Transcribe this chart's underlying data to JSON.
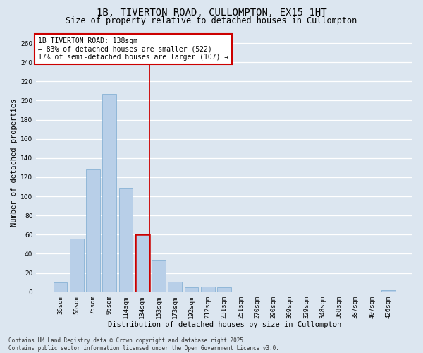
{
  "title_line1": "1B, TIVERTON ROAD, CULLOMPTON, EX15 1HT",
  "title_line2": "Size of property relative to detached houses in Cullompton",
  "xlabel": "Distribution of detached houses by size in Cullompton",
  "ylabel": "Number of detached properties",
  "categories": [
    "36sqm",
    "56sqm",
    "75sqm",
    "95sqm",
    "114sqm",
    "134sqm",
    "153sqm",
    "173sqm",
    "192sqm",
    "212sqm",
    "231sqm",
    "251sqm",
    "270sqm",
    "290sqm",
    "309sqm",
    "329sqm",
    "348sqm",
    "368sqm",
    "387sqm",
    "407sqm",
    "426sqm"
  ],
  "values": [
    10,
    56,
    128,
    207,
    109,
    60,
    34,
    11,
    5,
    6,
    5,
    0,
    0,
    0,
    0,
    0,
    0,
    0,
    0,
    0,
    2
  ],
  "bar_color": "#b8cfe8",
  "bar_edgecolor": "#7aaad0",
  "highlight_bar_index": 5,
  "highlight_bar_edgecolor": "#cc0000",
  "vline_color": "#cc0000",
  "annotation_text": "1B TIVERTON ROAD: 138sqm\n← 83% of detached houses are smaller (522)\n17% of semi-detached houses are larger (107) →",
  "annotation_box_facecolor": "#ffffff",
  "annotation_box_edgecolor": "#cc0000",
  "ylim": [
    0,
    270
  ],
  "yticks": [
    0,
    20,
    40,
    60,
    80,
    100,
    120,
    140,
    160,
    180,
    200,
    220,
    240,
    260
  ],
  "fig_facecolor": "#dce6f0",
  "plot_facecolor": "#dce6f0",
  "grid_color": "#ffffff",
  "footnote": "Contains HM Land Registry data © Crown copyright and database right 2025.\nContains public sector information licensed under the Open Government Licence v3.0.",
  "title_fontsize": 10,
  "subtitle_fontsize": 8.5,
  "axis_label_fontsize": 7.5,
  "tick_fontsize": 6.5,
  "annotation_fontsize": 7
}
